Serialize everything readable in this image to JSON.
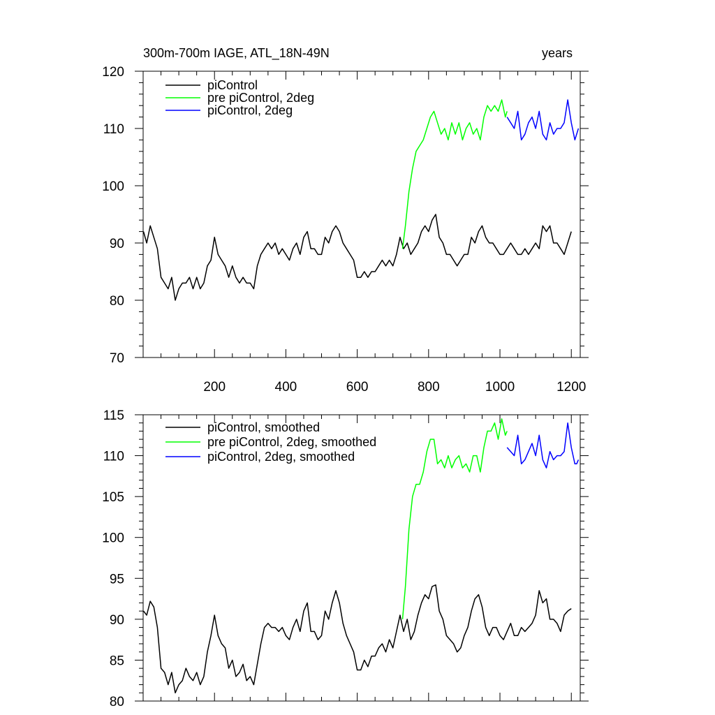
{
  "chart_data": [
    {
      "type": "line",
      "title": "300m-700m IAGE, ATL_18N-49N",
      "subtitle_right": "years",
      "xlim": [
        0,
        1225
      ],
      "ylim": [
        70,
        120
      ],
      "xticks": [
        200,
        400,
        600,
        800,
        1000,
        1200
      ],
      "yticks": [
        70,
        80,
        90,
        100,
        110,
        120
      ],
      "grid": false,
      "legend_position": "top-left",
      "series": [
        {
          "name": "piControl",
          "color": "#000000",
          "x": [
            1,
            10,
            20,
            30,
            40,
            50,
            60,
            70,
            80,
            90,
            100,
            110,
            120,
            130,
            140,
            150,
            160,
            170,
            180,
            190,
            200,
            210,
            220,
            230,
            240,
            250,
            260,
            270,
            280,
            290,
            300,
            310,
            320,
            330,
            340,
            350,
            360,
            370,
            380,
            390,
            400,
            410,
            420,
            430,
            440,
            450,
            460,
            470,
            480,
            490,
            500,
            510,
            520,
            530,
            540,
            550,
            560,
            570,
            580,
            590,
            600,
            610,
            620,
            630,
            640,
            650,
            660,
            670,
            680,
            690,
            700,
            710,
            720,
            730,
            740,
            750,
            760,
            770,
            780,
            790,
            800,
            810,
            820,
            830,
            840,
            850,
            860,
            870,
            880,
            890,
            900,
            910,
            920,
            930,
            940,
            950,
            960,
            970,
            980,
            990,
            1000,
            1010,
            1020,
            1030,
            1040,
            1050,
            1060,
            1070,
            1080,
            1090,
            1100,
            1110,
            1120,
            1130,
            1140,
            1150,
            1160,
            1170,
            1180,
            1190,
            1200
          ],
          "y": [
            92,
            90,
            93,
            91,
            89,
            84,
            83,
            82,
            84,
            80,
            82,
            83,
            83,
            84,
            82,
            84,
            82,
            83,
            86,
            87,
            91,
            88,
            87,
            86,
            84,
            86,
            84,
            83,
            84,
            83,
            83,
            82,
            86,
            88,
            89,
            90,
            89,
            90,
            88,
            89,
            88,
            87,
            89,
            90,
            88,
            91,
            92,
            89,
            89,
            88,
            88,
            91,
            90,
            92,
            93,
            92,
            90,
            89,
            88,
            87,
            84,
            84,
            85,
            84,
            85,
            85,
            86,
            87,
            86,
            87,
            86,
            88,
            91,
            89,
            90,
            88,
            89,
            90,
            92,
            93,
            92,
            94,
            95,
            91,
            90,
            88,
            88,
            87,
            86,
            87,
            88,
            88,
            91,
            90,
            92,
            93,
            91,
            90,
            90,
            89,
            88,
            88,
            89,
            90,
            89,
            88,
            88,
            89,
            88,
            89,
            90,
            89,
            93,
            92,
            93,
            90,
            90,
            89,
            88,
            90,
            92
          ]
        },
        {
          "name": "pre piControl, 2deg",
          "color": "#00ff00",
          "x": [
            727,
            735,
            745,
            755,
            765,
            775,
            785,
            795,
            805,
            815,
            825,
            835,
            845,
            855,
            865,
            875,
            885,
            895,
            905,
            915,
            925,
            935,
            945,
            955,
            965,
            975,
            985,
            995,
            1005,
            1015,
            1020
          ],
          "y": [
            89,
            93,
            99,
            103,
            106,
            107,
            108,
            110,
            112,
            113,
            111,
            109,
            110,
            108,
            111,
            109,
            111,
            108,
            110,
            111,
            109,
            110,
            108,
            112,
            114,
            113,
            114,
            113,
            115,
            112,
            113
          ]
        },
        {
          "name": "piControl, 2deg",
          "color": "#0000ff",
          "x": [
            1020,
            1030,
            1040,
            1050,
            1060,
            1070,
            1080,
            1090,
            1100,
            1110,
            1120,
            1130,
            1140,
            1150,
            1160,
            1170,
            1180,
            1190,
            1200,
            1210,
            1220
          ],
          "y": [
            112,
            111,
            110,
            113,
            108,
            109,
            111,
            112,
            110,
            113,
            109,
            108,
            111,
            109,
            110,
            110,
            111,
            115,
            111,
            108,
            110
          ]
        }
      ]
    },
    {
      "type": "line",
      "title": "",
      "xlim": [
        0,
        1225
      ],
      "ylim": [
        80,
        115
      ],
      "xticks": [
        200,
        400,
        600,
        800,
        1000,
        1200
      ],
      "yticks": [
        80,
        85,
        90,
        95,
        100,
        105,
        110,
        115
      ],
      "grid": false,
      "legend_position": "top-left",
      "series": [
        {
          "name": "piControl, smoothed",
          "color": "#000000",
          "x": [
            1,
            10,
            20,
            30,
            40,
            50,
            60,
            70,
            80,
            90,
            100,
            110,
            120,
            130,
            140,
            150,
            160,
            170,
            180,
            190,
            200,
            210,
            220,
            230,
            240,
            250,
            260,
            270,
            280,
            290,
            300,
            310,
            320,
            330,
            340,
            350,
            360,
            370,
            380,
            390,
            400,
            410,
            420,
            430,
            440,
            450,
            460,
            470,
            480,
            490,
            500,
            510,
            520,
            530,
            540,
            550,
            560,
            570,
            580,
            590,
            600,
            610,
            620,
            630,
            640,
            650,
            660,
            670,
            680,
            690,
            700,
            710,
            720,
            730,
            740,
            750,
            760,
            770,
            780,
            790,
            800,
            810,
            820,
            830,
            840,
            850,
            860,
            870,
            880,
            890,
            900,
            910,
            920,
            930,
            940,
            950,
            960,
            970,
            980,
            990,
            1000,
            1010,
            1020,
            1030,
            1040,
            1050,
            1060,
            1070,
            1080,
            1090,
            1100,
            1110,
            1120,
            1130,
            1140,
            1150,
            1160,
            1170,
            1180,
            1190,
            1200
          ],
          "y": [
            91,
            90.5,
            92.2,
            91.5,
            89,
            84,
            83.5,
            82,
            83.5,
            81,
            82,
            82.5,
            84,
            83,
            82.5,
            83.5,
            82,
            83,
            86,
            88,
            90.5,
            88,
            87,
            86.5,
            84,
            85,
            83,
            83.5,
            84.5,
            82.5,
            83,
            82,
            84.5,
            87,
            89,
            89.5,
            89,
            89,
            88.5,
            89,
            88,
            87.5,
            89,
            90,
            88.5,
            91,
            92,
            88.5,
            88.5,
            87.5,
            88,
            91,
            90,
            92,
            93.5,
            92,
            89.5,
            88,
            87,
            86,
            83.8,
            83.8,
            85,
            84.2,
            85.5,
            85.5,
            86.5,
            87,
            86,
            87.5,
            86.5,
            88.5,
            90.5,
            88.5,
            90,
            87.5,
            88.5,
            90.5,
            92,
            93,
            92.5,
            94,
            94.2,
            91,
            90,
            88,
            87.5,
            87,
            86,
            86.5,
            88,
            89,
            91,
            92.5,
            93,
            91.5,
            89,
            88,
            89,
            89,
            88,
            87.5,
            88.5,
            89.5,
            88,
            88,
            89,
            88.5,
            89,
            89.5,
            90.5,
            93.5,
            92,
            92.5,
            90,
            90,
            89.5,
            88.5,
            90.5,
            91,
            91.3
          ]
        },
        {
          "name": "pre piControl, 2deg, smoothed",
          "color": "#00ff00",
          "x": [
            727,
            735,
            745,
            755,
            765,
            775,
            785,
            795,
            805,
            815,
            825,
            835,
            845,
            855,
            865,
            875,
            885,
            895,
            905,
            915,
            925,
            935,
            945,
            955,
            965,
            975,
            985,
            995,
            1005,
            1015,
            1020
          ],
          "y": [
            90,
            94,
            101,
            105,
            106.5,
            106.5,
            108,
            110.5,
            112,
            112,
            109,
            109.5,
            108.5,
            110,
            108.5,
            109.5,
            110,
            108.5,
            109,
            108,
            110,
            110,
            108,
            111,
            113,
            113,
            114,
            112,
            114.5,
            112.5,
            113
          ]
        },
        {
          "name": "piControl, 2deg, smoothed",
          "color": "#0000ff",
          "x": [
            1020,
            1030,
            1040,
            1050,
            1060,
            1070,
            1080,
            1090,
            1100,
            1110,
            1120,
            1130,
            1140,
            1150,
            1160,
            1170,
            1180,
            1190,
            1200,
            1210,
            1215,
            1220
          ],
          "y": [
            111,
            110.5,
            110,
            112.5,
            109,
            109.5,
            110.5,
            111.5,
            110,
            112.5,
            109.5,
            108.5,
            110.5,
            109.5,
            110,
            110,
            110.5,
            114,
            111,
            109,
            109,
            109.5
          ]
        }
      ]
    }
  ]
}
